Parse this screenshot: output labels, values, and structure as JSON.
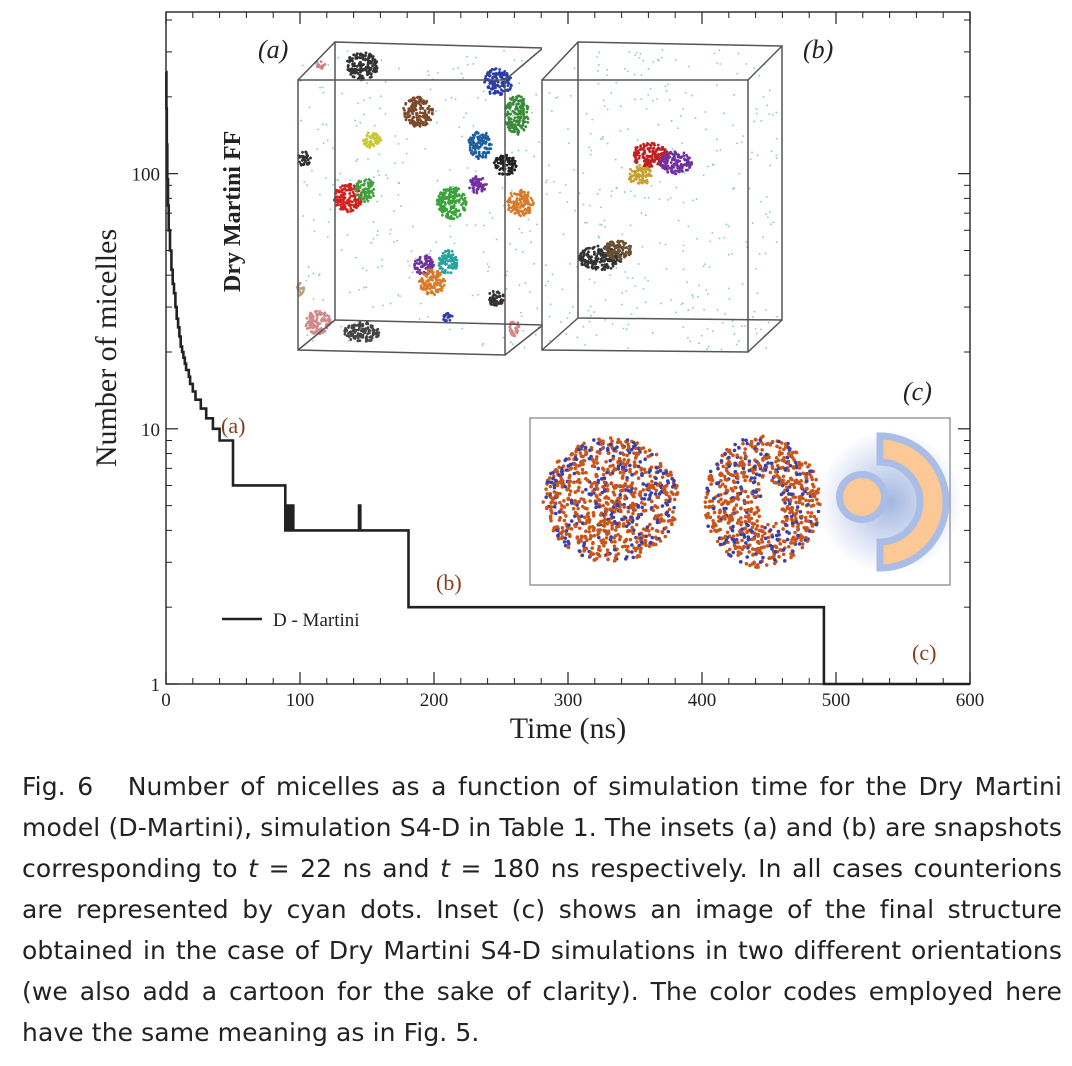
{
  "chart_data": {
    "type": "line",
    "xlabel": "Time (ns)",
    "ylabel": "Number of micelles",
    "xlim": [
      0,
      600
    ],
    "ylim": [
      1,
      430
    ],
    "y_scale": "log",
    "x_ticks": [
      0,
      100,
      200,
      300,
      400,
      500,
      600
    ],
    "y_ticks": [
      1,
      10,
      100
    ],
    "y_tick_labels": [
      "1",
      "10",
      "100"
    ],
    "legend": {
      "placement": "bottom-left",
      "entries": [
        "D - Martini"
      ]
    },
    "series": [
      {
        "name": "D - Martini",
        "color": "#222222",
        "x": [
          0,
          0.3,
          0.6,
          1,
          1.5,
          2,
          3,
          4,
          5,
          6,
          7,
          8,
          9,
          10,
          11,
          12,
          13,
          14,
          15,
          16,
          17,
          18,
          20,
          22,
          24,
          26,
          28,
          30,
          33,
          35,
          40,
          45,
          48,
          50,
          88,
          89,
          90,
          91,
          92,
          93,
          94,
          95,
          100,
          143,
          144,
          145,
          180,
          181,
          490,
          491,
          600
        ],
        "y": [
          250,
          180,
          130,
          95,
          75,
          60,
          50,
          42,
          37,
          34,
          30,
          27,
          25,
          23,
          21,
          20,
          19,
          18,
          17,
          17,
          16,
          15,
          14,
          13,
          13,
          12,
          12,
          11,
          11,
          10,
          9,
          9,
          9,
          6,
          6,
          4,
          5,
          4,
          5,
          4,
          5,
          4,
          4,
          4,
          5,
          4,
          4,
          2,
          2,
          1,
          1
        ]
      }
    ],
    "annotations": [
      "(a)",
      "(b)",
      "(c)"
    ],
    "insets": [
      {
        "label": "(a)",
        "side_text": "Dry Martini FF"
      },
      {
        "label": "(b)"
      },
      {
        "label": "(c)"
      }
    ]
  },
  "colors": {
    "curve": "#222222",
    "annotation": "#8b3a1e",
    "cartoon_fill": "#fbc896",
    "cartoon_halo": "#9fb3e0",
    "counterion": "#6fc0c0",
    "bead_core": "#c8561c",
    "bead_shell": "#3b3fa8"
  },
  "caption": {
    "label": "Fig. 6",
    "p1": "Number of micelles as a function of simulation time for the Dry Martini model (D-Martini), simulation S4-D in Table 1. The insets (a) and (b) are snapshots corresponding to ",
    "t1": "t",
    "p2": " = 22 ns and ",
    "t2": "t",
    "p3": " = 180 ns respectively. In all cases counterions are represented by cyan dots. Inset (c) shows an image of the final structure obtained in the case of Dry Martini S4-D simulations in two different orientations (we also add a cartoon for the sake of clarity). The color codes employed here have the same meaning as in Fig. 5."
  }
}
